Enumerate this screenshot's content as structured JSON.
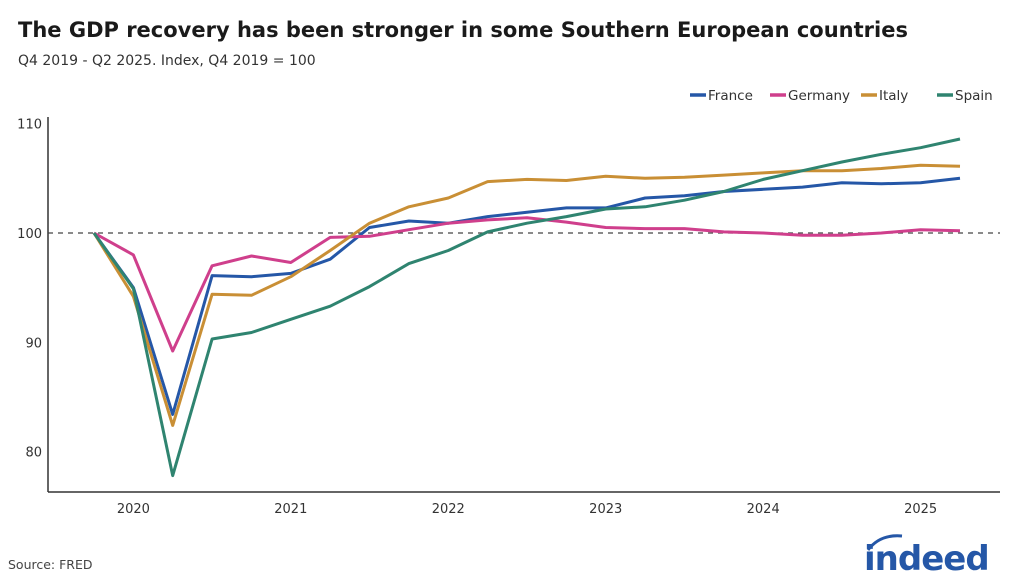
{
  "title": "The GDP recovery has been stronger in some Southern European countries",
  "subtitle": "Q4 2019 - Q2 2025. Index, Q4 2019 = 100",
  "source": "Source: FRED",
  "logo": "indeed",
  "brand_color": "#2557a7",
  "chart_data": {
    "type": "line",
    "x": [
      "Q4 2019",
      "Q1 2020",
      "Q2 2020",
      "Q3 2020",
      "Q4 2020",
      "Q1 2021",
      "Q2 2021",
      "Q3 2021",
      "Q4 2021",
      "Q1 2022",
      "Q2 2022",
      "Q3 2022",
      "Q4 2022",
      "Q1 2023",
      "Q2 2023",
      "Q3 2023",
      "Q4 2023",
      "Q1 2024",
      "Q2 2024",
      "Q3 2024",
      "Q4 2024",
      "Q1 2025",
      "Q2 2025"
    ],
    "xticks": [
      {
        "label": "2020",
        "at": "Q1 2020"
      },
      {
        "label": "2021",
        "at": "Q1 2021"
      },
      {
        "label": "2022",
        "at": "Q1 2022"
      },
      {
        "label": "2023",
        "at": "Q1 2023"
      },
      {
        "label": "2024",
        "at": "Q1 2024"
      },
      {
        "label": "2025",
        "at": "Q1 2025"
      }
    ],
    "yticks": [
      80,
      90,
      100,
      110
    ],
    "ylim": [
      76.3,
      110.6
    ],
    "reference_line": 100,
    "grid": false,
    "legend_position": "top-right",
    "series": [
      {
        "name": "France",
        "color": "#2557a7",
        "values": [
          100,
          95.0,
          83.4,
          96.1,
          96.0,
          96.3,
          97.6,
          100.5,
          101.1,
          100.9,
          101.5,
          101.9,
          102.3,
          102.3,
          103.2,
          103.4,
          103.8,
          104.0,
          104.2,
          104.6,
          104.5,
          104.6,
          105.0
        ]
      },
      {
        "name": "Germany",
        "color": "#cf3f8c",
        "values": [
          100,
          98.0,
          89.2,
          97.0,
          97.9,
          97.3,
          99.6,
          99.7,
          100.3,
          100.9,
          101.2,
          101.4,
          101.0,
          100.5,
          100.4,
          100.4,
          100.1,
          100.0,
          99.8,
          99.8,
          100.0,
          100.3,
          100.2
        ]
      },
      {
        "name": "Italy",
        "color": "#c98f35",
        "values": [
          100,
          94.2,
          82.4,
          94.4,
          94.3,
          96.0,
          98.4,
          100.9,
          102.4,
          103.2,
          104.7,
          104.9,
          104.8,
          105.2,
          105.0,
          105.1,
          105.3,
          105.5,
          105.7,
          105.7,
          105.9,
          106.2,
          106.1
        ]
      },
      {
        "name": "Spain",
        "color": "#2f8470",
        "values": [
          100,
          94.9,
          77.8,
          90.3,
          90.9,
          92.1,
          93.3,
          95.1,
          97.2,
          98.4,
          100.1,
          100.9,
          101.5,
          102.2,
          102.4,
          103.0,
          103.8,
          104.9,
          105.7,
          106.5,
          107.2,
          107.8,
          108.6
        ]
      }
    ]
  }
}
